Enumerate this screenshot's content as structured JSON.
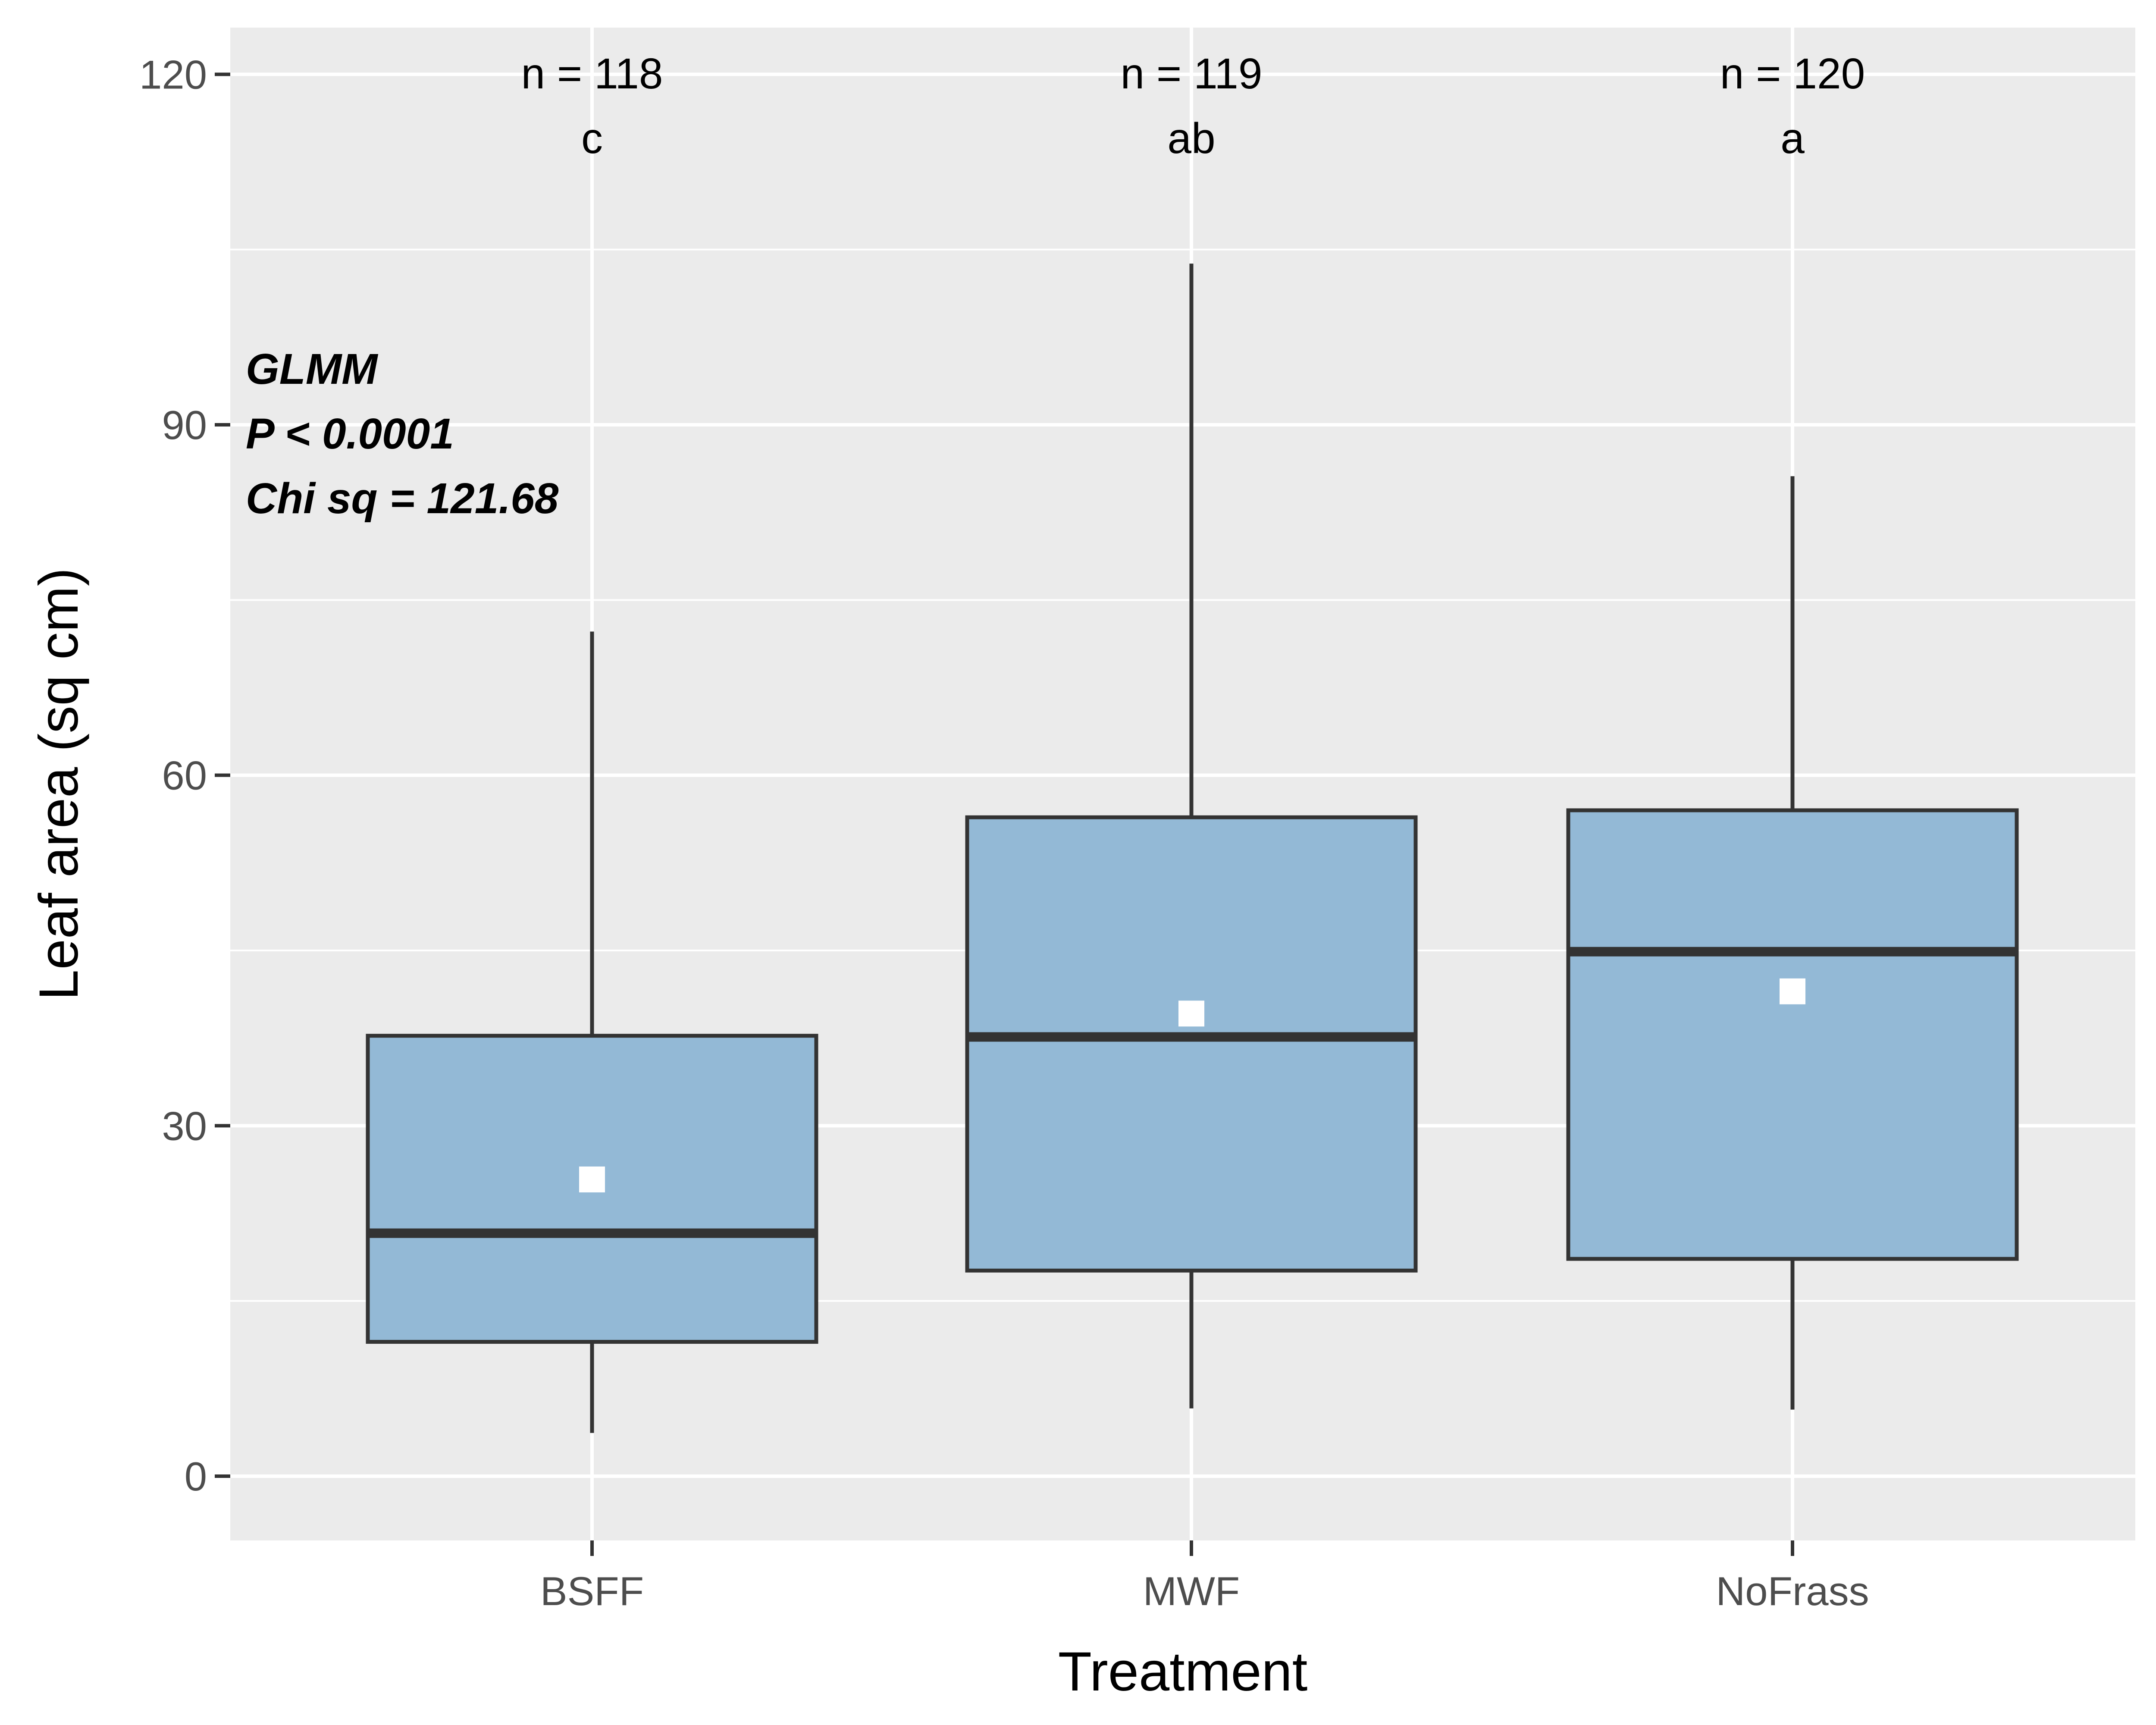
{
  "chart_data": {
    "type": "box",
    "xlabel": "Treatment",
    "ylabel": "Leaf area (sq cm)",
    "ylim": [
      -5.5,
      124
    ],
    "yticks": [
      0,
      30,
      60,
      90,
      120
    ],
    "ytick_labels": [
      "0",
      "30",
      "60",
      "90",
      "120"
    ],
    "grid": true,
    "categories": [
      "BSFF",
      "MWF",
      "NoFrass"
    ],
    "boxes": [
      {
        "category": "BSFF",
        "whisker_low": 3.7,
        "q1": 11.5,
        "median": 20.8,
        "q3": 37.7,
        "whisker_high": 72.3,
        "mean": 25.4,
        "n_label": "n = 118",
        "group_letter": "c"
      },
      {
        "category": "MWF",
        "whisker_low": 5.8,
        "q1": 17.6,
        "median": 37.6,
        "q3": 56.4,
        "whisker_high": 103.8,
        "mean": 39.6,
        "n_label": "n = 119",
        "group_letter": "ab"
      },
      {
        "category": "NoFrass",
        "whisker_low": 5.7,
        "q1": 18.6,
        "median": 44.9,
        "q3": 57.0,
        "whisker_high": 85.6,
        "mean": 41.5,
        "n_label": "n = 120",
        "group_letter": "a"
      }
    ],
    "stats_annotation": [
      "GLMM",
      "P < 0.0001",
      "Chi sq = 121.68"
    ]
  },
  "colors": {
    "panel_background": "#ebebeb",
    "grid": "#ffffff",
    "box_fill": "#93b9d6",
    "box_outline": "#333333",
    "mean_marker": "#ffffff",
    "tick_text": "#4d4d4d"
  }
}
